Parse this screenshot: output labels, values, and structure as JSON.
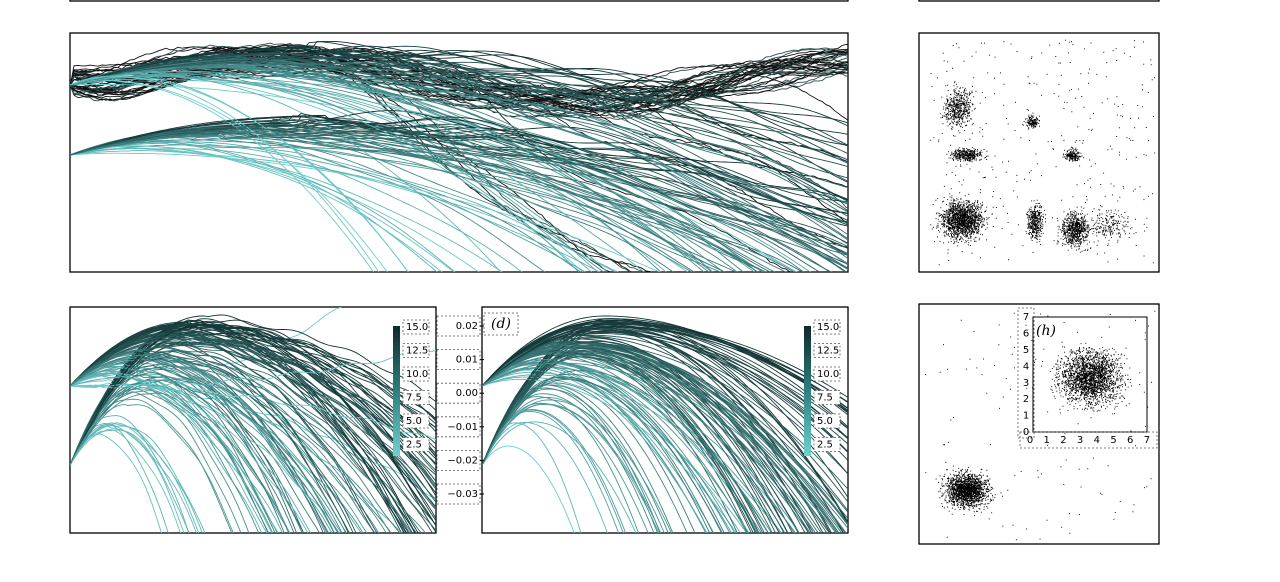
{
  "panel_d": {
    "label": "(d)"
  },
  "panel_h": {
    "label": "(h)"
  },
  "colorbar_left": {
    "ticks": [
      "15.0",
      "12.5",
      "10.0",
      "7.5",
      "5.0",
      "2.5"
    ]
  },
  "colorbar_right": {
    "ticks": [
      "15.0",
      "12.5",
      "10.0",
      "7.5",
      "5.0",
      "2.5"
    ]
  },
  "shared_axis": {
    "ticks": [
      "0.02",
      "0.01",
      "0.00",
      "−0.01",
      "−0.02",
      "−0.03"
    ]
  },
  "inset_h": {
    "xticks": [
      "0",
      "1",
      "2",
      "3",
      "4",
      "5",
      "6",
      "7"
    ],
    "yticks": [
      "0",
      "1",
      "2",
      "3",
      "4",
      "5",
      "6",
      "7"
    ]
  }
}
